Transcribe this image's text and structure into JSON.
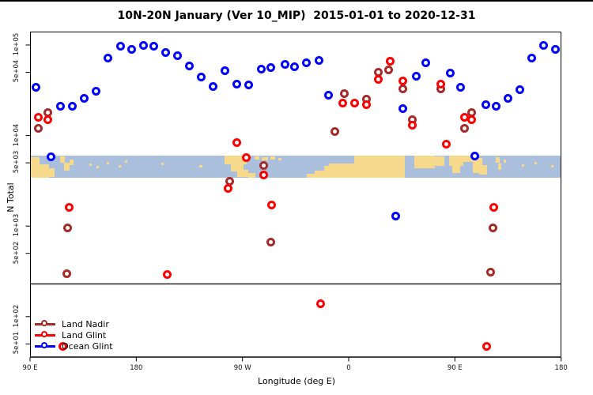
{
  "chart_data": {
    "type": "scatter",
    "title": "10N-20N January (Ver 10_MIP)  2015-01-01 to 2020-12-31",
    "xlabel": "Longitude (deg E)",
    "ylabel": "N Total",
    "x_axis": {
      "range": [
        90,
        540
      ],
      "ticks": [
        {
          "lon": 90,
          "label": "90 E"
        },
        {
          "lon": 180,
          "label": "180"
        },
        {
          "lon": 270,
          "label": "90 W"
        },
        {
          "lon": 360,
          "label": "0"
        },
        {
          "lon": 450,
          "label": "90 E"
        },
        {
          "lon": 540,
          "label": "180"
        }
      ]
    },
    "y_axis": {
      "scale": "log",
      "ticks": [
        {
          "value": 100000,
          "label": "1e+05"
        },
        {
          "value": 50000,
          "label": "5e+04"
        },
        {
          "value": 10000,
          "label": "1e+04"
        },
        {
          "value": 5000,
          "label": "5e+03"
        },
        {
          "value": 1000,
          "label": "1e+03"
        },
        {
          "value": 500,
          "label": "5e+02"
        },
        {
          "value": 100,
          "label": "1e+02"
        },
        {
          "value": 50,
          "label": "5e+01"
        }
      ]
    },
    "threshold_line_n": 230,
    "grid": false,
    "legend_position": "bottom-left",
    "series": [
      {
        "name": "Land Nadir",
        "color": "#A52A2A",
        "points": [
          [
            105,
            18000
          ],
          [
            97,
            12000
          ],
          [
            259,
            3100
          ],
          [
            288,
            4700
          ],
          [
            356,
            29000
          ],
          [
            375,
            25000
          ],
          [
            385,
            50000
          ],
          [
            394,
            53000
          ],
          [
            406,
            33000
          ],
          [
            438,
            33000
          ],
          [
            414,
            15000
          ],
          [
            464,
            18000
          ],
          [
            458,
            12000
          ],
          [
            348,
            11000
          ],
          [
            122,
            960
          ],
          [
            121,
            300
          ],
          [
            294,
            660
          ],
          [
            482,
            960
          ],
          [
            480,
            310
          ]
        ]
      },
      {
        "name": "Land Glint",
        "color": "#FF0000",
        "points": [
          [
            97,
            16000
          ],
          [
            105,
            15000
          ],
          [
            265,
            8400
          ],
          [
            273,
            5700
          ],
          [
            288,
            3700
          ],
          [
            258,
            2600
          ],
          [
            355,
            23000
          ],
          [
            365,
            23000
          ],
          [
            375,
            22000
          ],
          [
            385,
            42000
          ],
          [
            395,
            66000
          ],
          [
            406,
            40000
          ],
          [
            438,
            37000
          ],
          [
            414,
            13000
          ],
          [
            458,
            16000
          ],
          [
            464,
            15000
          ],
          [
            443,
            8100
          ],
          [
            123,
            1600
          ],
          [
            206,
            290
          ],
          [
            295,
            1700
          ],
          [
            483,
            1600
          ],
          [
            336,
            140
          ],
          [
            477,
            47
          ],
          [
            118,
            47
          ]
        ]
      },
      {
        "name": "Ocean Glint",
        "color": "#0000FF",
        "points": [
          [
            95,
            34000
          ],
          [
            108,
            5800
          ],
          [
            116,
            21000
          ],
          [
            126,
            21000
          ],
          [
            136,
            26000
          ],
          [
            146,
            31000
          ],
          [
            156,
            72000
          ],
          [
            167,
            98000
          ],
          [
            176,
            90000
          ],
          [
            186,
            100000
          ],
          [
            195,
            98000
          ],
          [
            205,
            83000
          ],
          [
            215,
            76000
          ],
          [
            225,
            59000
          ],
          [
            235,
            44000
          ],
          [
            245,
            35000
          ],
          [
            255,
            52000
          ],
          [
            265,
            37000
          ],
          [
            275,
            36000
          ],
          [
            286,
            54000
          ],
          [
            294,
            56000
          ],
          [
            306,
            61000
          ],
          [
            314,
            57000
          ],
          [
            324,
            64000
          ],
          [
            335,
            67000
          ],
          [
            343,
            28000
          ],
          [
            400,
            1300
          ],
          [
            406,
            20000
          ],
          [
            417,
            45000
          ],
          [
            425,
            63000
          ],
          [
            446,
            49000
          ],
          [
            455,
            34000
          ],
          [
            467,
            5900
          ],
          [
            476,
            22000
          ],
          [
            485,
            21000
          ],
          [
            495,
            26000
          ],
          [
            505,
            32000
          ],
          [
            515,
            72000
          ],
          [
            525,
            100000
          ],
          [
            535,
            89000
          ]
        ]
      }
    ]
  },
  "legend": {
    "items": [
      {
        "label": "Land Nadir",
        "color": "#A52A2A"
      },
      {
        "label": "Land Glint",
        "color": "#FF0000"
      },
      {
        "label": "Ocean Glint",
        "color": "#0000FF"
      }
    ]
  },
  "map_strip": {
    "description": "10N-20N latitude band world map",
    "ocean_color": "#A9BFDC",
    "land_color": "#F7D98C"
  }
}
